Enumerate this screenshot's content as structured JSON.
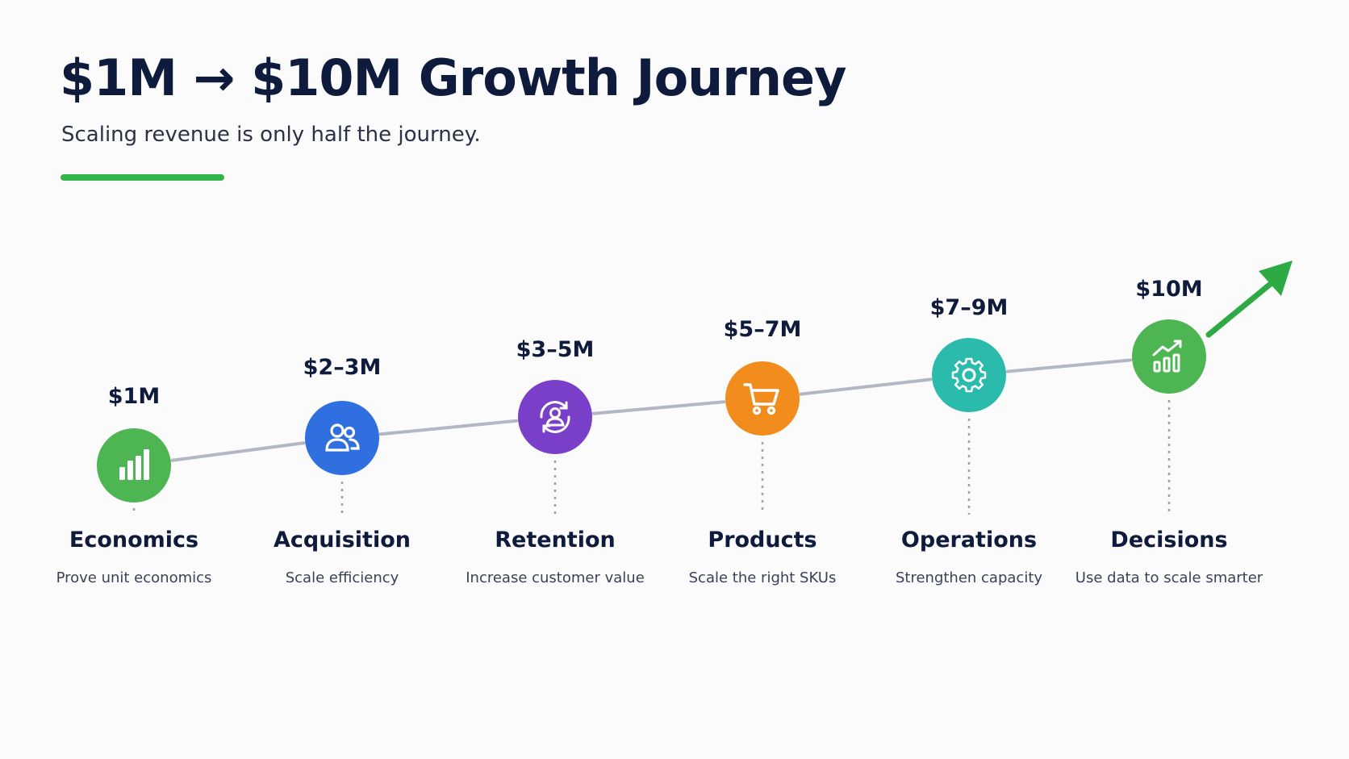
{
  "header": {
    "title": "$1M → $10M Growth Journey",
    "subtitle": "Scaling revenue is only half the journey."
  },
  "colors": {
    "title": "#0f1b3d",
    "accent_bar": "#34b54a",
    "connector": "#b3b7c4",
    "arrow": "#2eaa44"
  },
  "stages": [
    {
      "amount": "$1M",
      "title": "Economics",
      "description": "Prove unit economics",
      "icon": "bar-chart-icon",
      "color": "#4db552"
    },
    {
      "amount": "$2–3M",
      "title": "Acquisition",
      "description": "Scale efficiency",
      "icon": "users-icon",
      "color": "#2f6fe0"
    },
    {
      "amount": "$3–5M",
      "title": "Retention",
      "description": "Increase customer value",
      "icon": "user-cycle-icon",
      "color": "#7a3fc8"
    },
    {
      "amount": "$5–7M",
      "title": "Products",
      "description": "Scale the right SKUs",
      "icon": "cart-icon",
      "color": "#f28c1c"
    },
    {
      "amount": "$7–9M",
      "title": "Operations",
      "description": "Strengthen capacity",
      "icon": "gear-icon",
      "color": "#2bbbad"
    },
    {
      "amount": "$10M",
      "title": "Decisions",
      "description": "Use data to scale smarter",
      "icon": "growth-chart-icon",
      "color": "#4db552"
    }
  ]
}
